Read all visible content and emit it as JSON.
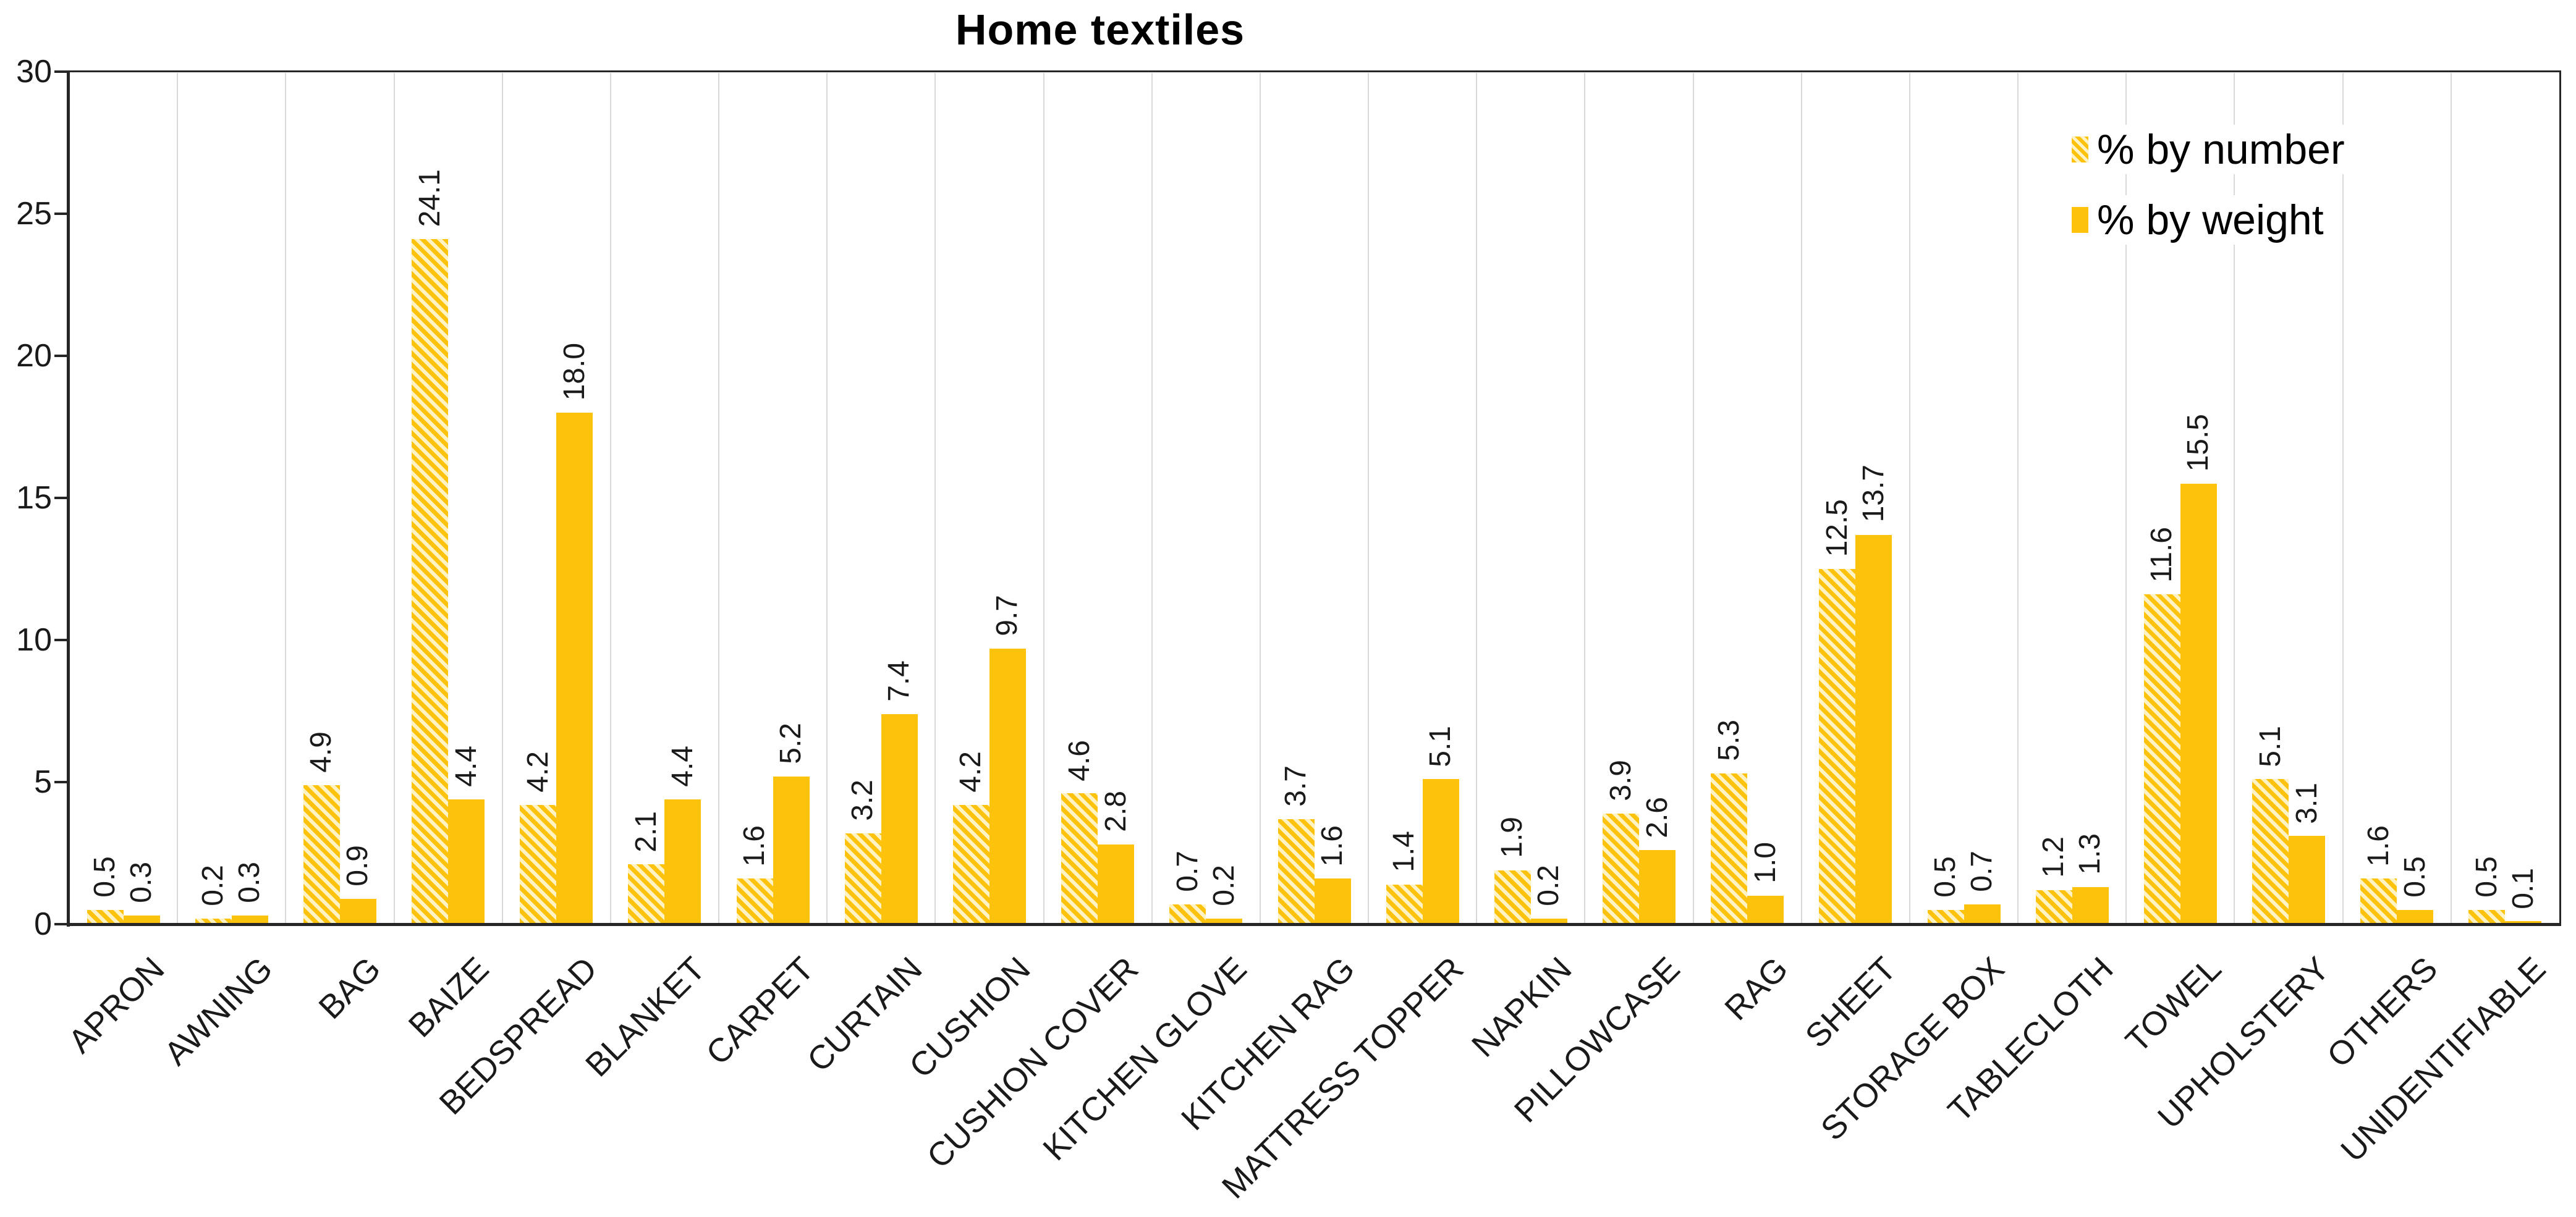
{
  "chart_data": {
    "type": "bar",
    "title": "Home textiles",
    "categories": [
      "APRON",
      "AWNING",
      "BAG",
      "BAIZE",
      "BEDSPREAD",
      "BLANKET",
      "CARPET",
      "CURTAIN",
      "CUSHION",
      "CUSHION COVER",
      "KITCHEN GLOVE",
      "KITCHEN RAG",
      "MATTRESS TOPPER",
      "NAPKIN",
      "PILLOWCASE",
      "RAG",
      "SHEET",
      "STORAGE BOX",
      "TABLECLOTH",
      "TOWEL",
      "UPHOLSTERY",
      "OTHERS",
      "UNIDENTIFIABLE"
    ],
    "series": [
      {
        "name": "% by number",
        "style": "hatched",
        "values": [
          0.5,
          0.2,
          4.9,
          24.1,
          4.2,
          2.1,
          1.6,
          3.2,
          4.2,
          4.6,
          0.7,
          3.7,
          1.4,
          1.9,
          3.9,
          5.3,
          12.5,
          0.5,
          1.2,
          11.6,
          5.1,
          1.6,
          0.5
        ]
      },
      {
        "name": "% by weight",
        "style": "solid",
        "values": [
          0.3,
          0.3,
          0.9,
          4.4,
          18.0,
          4.4,
          5.2,
          7.4,
          9.7,
          2.8,
          0.2,
          1.6,
          5.1,
          0.2,
          2.6,
          1.0,
          13.7,
          0.7,
          1.3,
          15.5,
          3.1,
          0.5,
          0.1
        ]
      }
    ],
    "xlabel": "",
    "ylabel": "",
    "ylim": [
      0,
      30
    ],
    "yticks": [
      0,
      5,
      10,
      15,
      20,
      25,
      30
    ],
    "grid": "vertical category separators only",
    "legend_position": "top-right inside plot",
    "data_label_rotation_deg": 270,
    "category_label_rotation_deg": 45,
    "data_label_format": "one-decimal"
  },
  "legend": {
    "items": [
      {
        "label": "% by number",
        "swatch": "hatched"
      },
      {
        "label": "% by weight",
        "swatch": "solid"
      }
    ]
  },
  "colors": {
    "bar_gold": "#fcc20c",
    "hatch_light": "#fff3c4",
    "gridline": "#d9d9d9",
    "axis": "#262626",
    "text": "#1a1a1a",
    "background": "#ffffff"
  }
}
